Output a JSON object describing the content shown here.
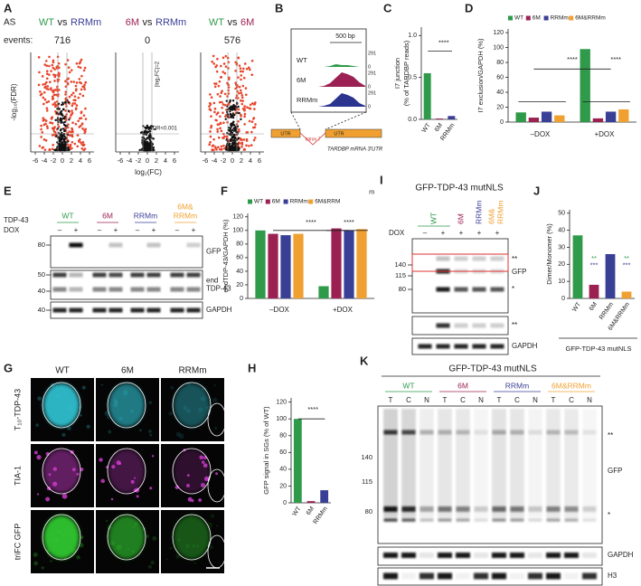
{
  "panel_letters": [
    "A",
    "B",
    "C",
    "D",
    "E",
    "F",
    "G",
    "H",
    "I",
    "J",
    "K"
  ],
  "panel_a": {
    "events_label": [
      "AS",
      "events:"
    ],
    "comparisons": [
      {
        "left": "WT",
        "vs": "vs",
        "right": "RRMm",
        "left_color": "#2e9a4a",
        "right_color": "#3a3f96",
        "count": 716
      },
      {
        "left": "6M",
        "vs": "vs",
        "right": "RRMm",
        "left_color": "#9b2153",
        "right_color": "#3a3f96",
        "count": 0
      },
      {
        "left": "WT",
        "vs": "vs",
        "right": "6M",
        "left_color": "#2e9a4a",
        "right_color": "#9b2153",
        "count": 576
      }
    ],
    "ylabel": "-log₁₀(FDR)",
    "xlabel": "log₂(FC)",
    "xlim": [
      -7,
      7
    ],
    "xticks": [
      -6,
      -4,
      -2,
      0,
      2,
      4,
      6
    ],
    "fc_note": "|log₂FC|=2",
    "fdr_note": "FDR<0.001",
    "point_color": "#e8452c"
  },
  "panel_b": {
    "scale": "500 bp",
    "tracks": [
      {
        "name": "WT",
        "max": 291,
        "min": 0,
        "color": "#2e9a4a"
      },
      {
        "name": "6M",
        "max": 291,
        "min": 0,
        "color": "#9b2153"
      },
      {
        "name": "RRMm",
        "max": 291,
        "min": 0,
        "color": "#2b3590"
      }
    ],
    "utr_left": "UTR",
    "intron": "Intron 7",
    "utr_right": "UTR",
    "gene_label": "TARDBP mRNA 3'UTR"
  },
  "chart_data": [
    {
      "type": "bar",
      "ylabel": [
        "I7 junction",
        "(% of TARDBP reads)"
      ],
      "categories": [
        "WT",
        "6M",
        "RRMm"
      ],
      "values": [
        0.55,
        0.01,
        0.04
      ],
      "colors": [
        "#2e9a4a",
        "#9b2153",
        "#3a3f96"
      ],
      "ylim": [
        0,
        1.1
      ],
      "yticks": [
        {
          "value": 0,
          "label": "0.0"
        },
        {
          "value": 0.5,
          "label": "0.5"
        },
        {
          "value": 1,
          "label": "1.0"
        }
      ],
      "annotations": [
        {
          "text": "****"
        }
      ]
    },
    {
      "type": "bar",
      "ylabel": "I7 exclusion/GAPDH (%)",
      "categories": [
        "–DOX",
        "+DOX"
      ],
      "series": [
        {
          "name": "WT",
          "color": "#2e9a4a",
          "values": [
            13,
            98
          ]
        },
        {
          "name": "6M",
          "color": "#9b2153",
          "values": [
            6,
            5
          ]
        },
        {
          "name": "RRMm",
          "color": "#3a3f96",
          "values": [
            14,
            14
          ]
        },
        {
          "name": "6M&RRMm",
          "color": "#f0a030",
          "values": [
            9,
            17
          ]
        }
      ],
      "ylim": [
        0,
        125
      ],
      "yticks": [
        0,
        20,
        40,
        60,
        80,
        100,
        120
      ],
      "annotations": [
        {
          "text": "****"
        },
        {
          "text": "****"
        }
      ]
    },
    {
      "type": "bar",
      "ylabel": "endTDP-43/GAPDH (%)",
      "categories": [
        "–DOX",
        "+DOX"
      ],
      "series": [
        {
          "name": "WT",
          "color": "#2e9a4a",
          "values": [
            100,
            18
          ]
        },
        {
          "name": "6M",
          "color": "#9b2153",
          "values": [
            95,
            103
          ]
        },
        {
          "name": "RRMm",
          "color": "#3a3f96",
          "values": [
            93,
            100
          ]
        },
        {
          "name": "6M&RRM",
          "color": "#f0a030",
          "values": [
            95,
            102
          ]
        }
      ],
      "ylim": [
        0,
        125
      ],
      "yticks": [
        0,
        20,
        40,
        60,
        80,
        100,
        120
      ],
      "annotations": [
        {
          "text": "****"
        },
        {
          "text": "****"
        },
        {
          "text": "m"
        }
      ]
    },
    {
      "type": "bar",
      "ylabel": "GFP signal in SGs (% of WT)",
      "categories": [
        "WT",
        "6M",
        "RRMm"
      ],
      "values": [
        100,
        2,
        15
      ],
      "colors": [
        "#2e9a4a",
        "#9b2153",
        "#3a3f96"
      ],
      "ylim": [
        0,
        125
      ],
      "yticks": [
        0,
        20,
        40,
        60,
        80,
        100,
        120
      ],
      "annotations": [
        {
          "text": "****"
        }
      ]
    },
    {
      "type": "bar",
      "ylabel": "Dimer/Monomer (%)",
      "categories": [
        "WT",
        "6M",
        "RRMm",
        "6M&RRMm"
      ],
      "values": [
        37,
        8,
        26,
        4
      ],
      "colors": [
        "#2e9a4a",
        "#9b2153",
        "#3a3f96",
        "#f0a030"
      ],
      "ylim": [
        0,
        52
      ],
      "yticks": [
        0,
        10,
        20,
        30,
        40,
        50
      ],
      "xlabel": "GFP-TDP-43 mutNLS",
      "annotations": [
        {
          "text": "**",
          "color": "#2e9a4a"
        },
        {
          "text": "***",
          "color": "#3a3f96"
        },
        {
          "text": "**",
          "color": "#2e9a4a"
        },
        {
          "text": "***",
          "color": "#3a3f96"
        }
      ]
    }
  ],
  "panel_e": {
    "protein": "TDP-43",
    "dox": "DOX",
    "dox_states": [
      "–",
      "+"
    ],
    "groups": [
      {
        "lines": [
          "WT"
        ],
        "color": "#2e9a4a"
      },
      {
        "lines": [
          "6M"
        ],
        "color": "#9b2153"
      },
      {
        "lines": [
          "RRMm"
        ],
        "color": "#3a3f96"
      },
      {
        "lines": [
          "6M&",
          "RRMm"
        ],
        "color": "#f0a030"
      }
    ],
    "blots": [
      {
        "label": [
          "GFP"
        ],
        "markers": [
          80
        ]
      },
      {
        "label": [
          "end",
          "TDP-43"
        ],
        "markers": [
          50,
          40
        ]
      },
      {
        "label": [
          "GAPDH"
        ],
        "markers": [
          40
        ]
      }
    ]
  },
  "panel_i": {
    "title": "GFP-TDP-43 mutNLS",
    "dox": "DOX",
    "dox_states": [
      "–",
      "+"
    ],
    "genotypes": [
      {
        "lines": [
          "WT"
        ],
        "color": "#2e9a4a"
      },
      {
        "lines": [
          "6M"
        ],
        "color": "#9b2153"
      },
      {
        "lines": [
          "RRMm"
        ],
        "color": "#3a3f96"
      },
      {
        "lines": [
          "6M&",
          "RRMm"
        ],
        "color": "#f0a030"
      }
    ],
    "markers": [
      140,
      115,
      80
    ],
    "band_labels": [
      "**",
      "GFP",
      "*"
    ],
    "lower_label": "**",
    "loading": "GAPDH"
  },
  "panel_g": {
    "columns": [
      "WT",
      "6M",
      "RRMm"
    ],
    "rows": [
      {
        "label": "T₁₀-TDP-43",
        "color": "#30c8d8"
      },
      {
        "label": "TIA-1",
        "color": "#d23cd2"
      },
      {
        "label": "triFC GFP",
        "color": "#30d030"
      }
    ]
  },
  "panel_k": {
    "title": "GFP-TDP-43 mutNLS",
    "groups": [
      {
        "name": "WT",
        "color": "#2e9a4a"
      },
      {
        "name": "6M",
        "color": "#9b2153"
      },
      {
        "name": "RRMm",
        "color": "#3a3f96"
      },
      {
        "name": "6M&RRMm",
        "color": "#f0a030"
      }
    ],
    "fractions": [
      "T",
      "C",
      "N"
    ],
    "markers": [
      140,
      115,
      80
    ],
    "band_labels": [
      "**",
      "GFP",
      "*"
    ],
    "loading": [
      "GAPDH",
      "H3"
    ]
  }
}
